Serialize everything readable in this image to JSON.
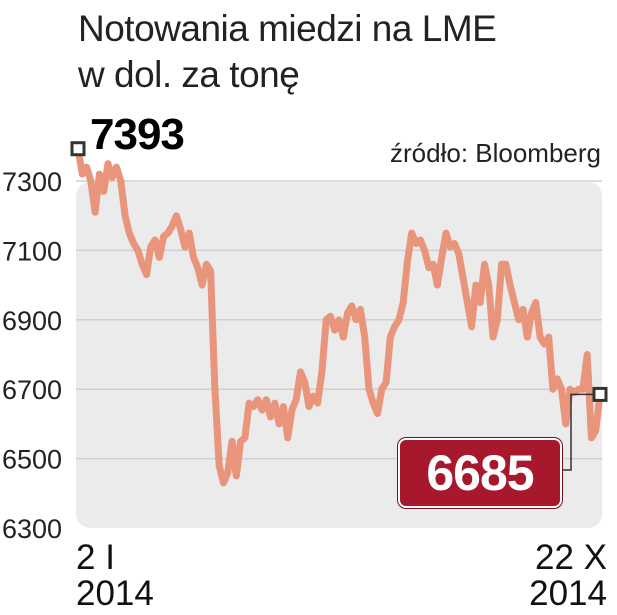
{
  "title_line1": "Notowania miedzi na LME",
  "title_line2": "w dol. za tonę",
  "source": "źródło: Bloomberg",
  "start_value_label": "7393",
  "end_value_label": "6685",
  "x_start_label": {
    "line1": "2 I",
    "line2": "2014"
  },
  "x_end_label": {
    "line1": "22 X",
    "line2": "2014"
  },
  "colors": {
    "line": "#e8957c",
    "plot_bg": "#ebebeb",
    "badge": "#a8182c",
    "grid": "#cfcfcf"
  },
  "chart_data": {
    "type": "line",
    "title": "Notowania miedzi na LME",
    "subtitle": "w dol. za tonę",
    "xlabel": "",
    "ylabel": "",
    "ylim": [
      6300,
      7400
    ],
    "yticks": [
      6300,
      6500,
      6700,
      6900,
      7100,
      7300
    ],
    "grid": true,
    "x_range": [
      "2 I 2014",
      "22 X 2014"
    ],
    "y": [
      7393,
      7320,
      7340,
      7300,
      7210,
      7320,
      7270,
      7350,
      7310,
      7340,
      7300,
      7200,
      7150,
      7120,
      7100,
      7060,
      7030,
      7110,
      7130,
      7080,
      7140,
      7150,
      7170,
      7200,
      7160,
      7110,
      7150,
      7080,
      7050,
      7000,
      7060,
      7040,
      6700,
      6480,
      6430,
      6460,
      6550,
      6450,
      6550,
      6560,
      6660,
      6650,
      6670,
      6640,
      6670,
      6620,
      6660,
      6600,
      6650,
      6560,
      6640,
      6670,
      6750,
      6720,
      6650,
      6680,
      6660,
      6750,
      6900,
      6910,
      6870,
      6900,
      6850,
      6920,
      6940,
      6900,
      6930,
      6850,
      6700,
      6660,
      6630,
      6700,
      6720,
      6850,
      6880,
      6900,
      6950,
      7070,
      7150,
      7120,
      7130,
      7100,
      7050,
      7060,
      7000,
      7080,
      7150,
      7110,
      7120,
      7090,
      7020,
      6950,
      6880,
      7000,
      6950,
      7060,
      7000,
      6850,
      6900,
      7060,
      7060,
      7000,
      6950,
      6900,
      6930,
      6850,
      6920,
      6950,
      6850,
      6830,
      6850,
      6700,
      6730,
      6700,
      6600,
      6700,
      6690,
      6700,
      6700,
      6800,
      6560,
      6580,
      6685
    ]
  }
}
